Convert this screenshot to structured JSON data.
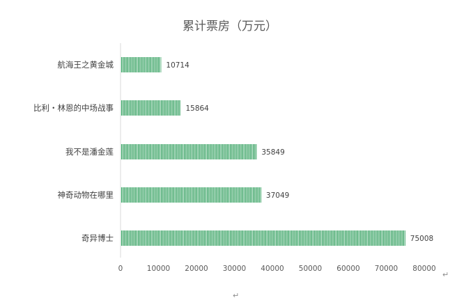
{
  "chart_data": {
    "type": "bar",
    "orientation": "horizontal",
    "title": "累计票房（万元）",
    "categories": [
      "航海王之黄金城",
      "比利・林恩的中场战事",
      "我不是潘金莲",
      "神奇动物在哪里",
      "奇异博士"
    ],
    "values": [
      10714,
      15864,
      35849,
      37049,
      75008
    ],
    "data_labels": [
      "10714",
      "15864",
      "35849",
      "37049",
      "75008"
    ],
    "xlim": [
      0,
      80000
    ],
    "x_ticks": [
      0,
      10000,
      20000,
      30000,
      40000,
      50000,
      60000,
      70000,
      80000
    ],
    "x_tick_labels": [
      "0",
      "10000",
      "20000",
      "30000",
      "40000",
      "50000",
      "60000",
      "70000",
      "80000"
    ],
    "xlabel": "",
    "ylabel": "",
    "grid": false,
    "legend": "none",
    "bar_color": "#2e9e5b",
    "bar_pattern": "vertical-stripes"
  },
  "marks": {
    "return_mark": "↵"
  }
}
